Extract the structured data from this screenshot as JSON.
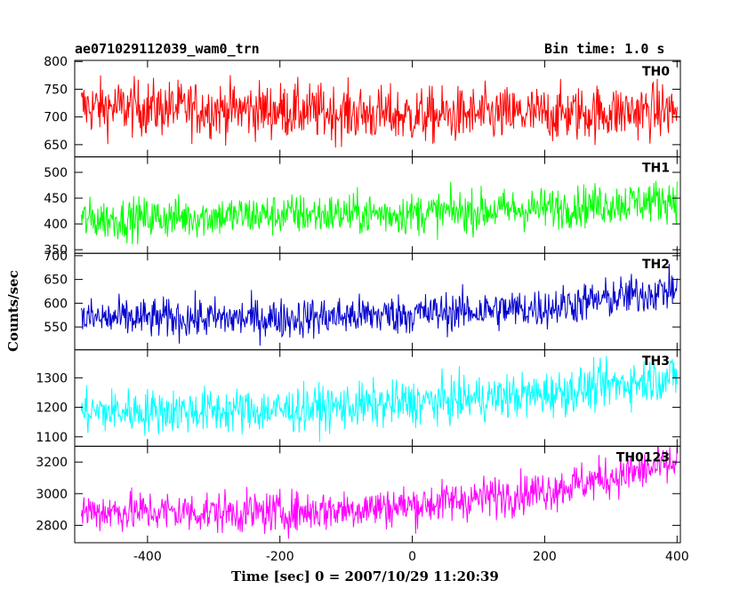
{
  "header": {
    "title": "ae071029112039_wam0_trn",
    "bin_time": "Bin time: 1.0 s"
  },
  "chart_data": {
    "type": "line",
    "xlabel": "Time [sec] 0 = 2007/10/29 11:20:39",
    "ylabel": "Counts/sec",
    "xlim": [
      -510,
      405
    ],
    "x_ticks": [
      -400,
      -200,
      0,
      200,
      400
    ],
    "grid": false,
    "panels": [
      {
        "name": "TH0",
        "color": "#ff0000",
        "ylim": [
          628,
          802
        ],
        "y_ticks": [
          650,
          700,
          750,
          800
        ],
        "trend": [
          [
            -500,
            718
          ],
          [
            -200,
            712
          ],
          [
            0,
            702
          ],
          [
            200,
            705
          ],
          [
            400,
            712
          ]
        ],
        "noise": 25
      },
      {
        "name": "TH1",
        "color": "#00ff00",
        "ylim": [
          343,
          530
        ],
        "y_ticks": [
          350,
          400,
          450,
          500
        ],
        "trend": [
          [
            -500,
            408
          ],
          [
            -200,
            418
          ],
          [
            0,
            420
          ],
          [
            200,
            430
          ],
          [
            400,
            448
          ]
        ],
        "noise": 20
      },
      {
        "name": "TH2",
        "color": "#0000cd",
        "ylim": [
          502,
          705
        ],
        "y_ticks": [
          550,
          600,
          650,
          700
        ],
        "trend": [
          [
            -500,
            568
          ],
          [
            -200,
            568
          ],
          [
            0,
            578
          ],
          [
            200,
            590
          ],
          [
            400,
            630
          ]
        ],
        "noise": 21
      },
      {
        "name": "TH3",
        "color": "#00ffff",
        "ylim": [
          1068,
          1395
        ],
        "y_ticks": [
          1100,
          1200,
          1300
        ],
        "trend": [
          [
            -500,
            1185
          ],
          [
            -200,
            1190
          ],
          [
            0,
            1215
          ],
          [
            200,
            1245
          ],
          [
            400,
            1305
          ]
        ],
        "noise": 38
      },
      {
        "name": "TH0123",
        "color": "#ff00ff",
        "ylim": [
          2690,
          3300
        ],
        "y_ticks": [
          2800,
          3000,
          3200
        ],
        "trend": [
          [
            -500,
            2890
          ],
          [
            -200,
            2880
          ],
          [
            0,
            2925
          ],
          [
            200,
            3020
          ],
          [
            400,
            3190
          ]
        ],
        "noise": 65
      }
    ]
  }
}
